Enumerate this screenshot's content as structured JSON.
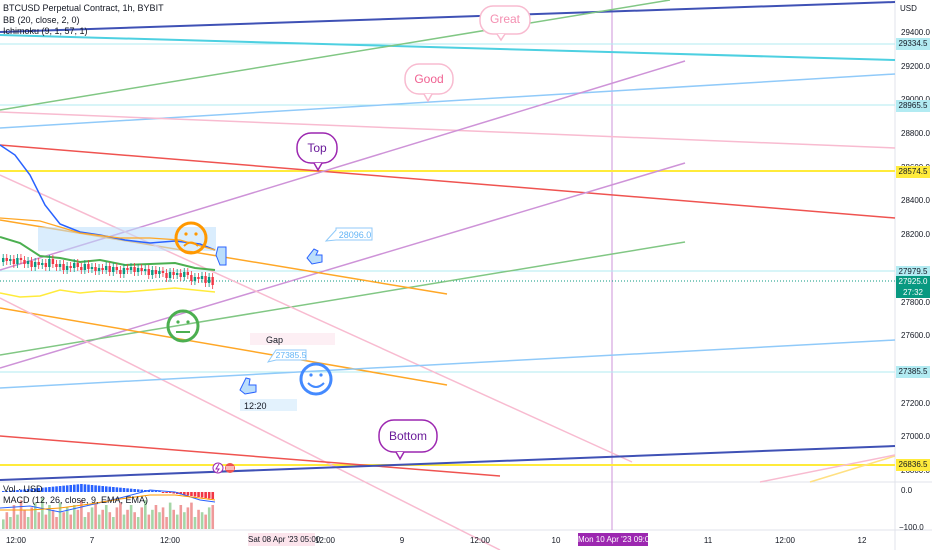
{
  "chart": {
    "symbol_line": "BTCUSD Perpetual Contract, 1h, BYBIT",
    "indicators": [
      "BB (20, close, 2, 0)",
      "Ichimoku (9, 1, 57, 1)"
    ],
    "currency": "USD",
    "price_ticks": [
      "29400.0",
      "29200.0",
      "28800.0",
      "28400.0",
      "28200.0",
      "27800.0",
      "27600.0",
      "27200.0",
      "27000.0"
    ],
    "price_ticks_partial": [
      "29000.0",
      "28600.0",
      "27400.0",
      "26800.0"
    ],
    "price_tags": [
      {
        "label": "29334.5",
        "color": "#b2ebf2",
        "text_color": "#131722"
      },
      {
        "label": "28965.5",
        "color": "#b2ebf2",
        "text_color": "#131722"
      },
      {
        "label": "28574.5",
        "color": "#ffeb3b",
        "text_color": "#131722"
      },
      {
        "label": "27979.5",
        "color": "#b2ebf2",
        "text_color": "#131722"
      },
      {
        "label": "27385.5",
        "color": "#b2ebf2",
        "text_color": "#131722"
      },
      {
        "label": "26836.5",
        "color": "#ffeb3b",
        "text_color": "#131722"
      }
    ],
    "current_price": {
      "price": "27925.0",
      "countdown": "27:32",
      "color": "#089981"
    },
    "macd_ticks": [
      "0.0",
      "−100.0"
    ],
    "vol_label": "Vol · USD",
    "macd_label": "MACD (12, 26, close, 9, EMA, EMA)",
    "time_ticks": [
      "12:00",
      "7",
      "12:00",
      "12:00",
      "9",
      "12:00",
      "10",
      "11",
      "12:00",
      "12"
    ],
    "time_highlight_1": "Sat 08 Apr '23",
    "time_highlight_1b": "05:00",
    "time_highlight_2": "Mon 10 Apr '23",
    "time_highlight_2b": "09:00",
    "callouts": {
      "great": "Great",
      "good": "Good",
      "top": "Top",
      "bottom": "Bottom"
    },
    "price_labels": {
      "label_28096": "28096.0",
      "label_27385": "27385.5"
    },
    "gap_label": "Gap",
    "time_label": "12:20"
  },
  "colors": {
    "up": "#089981",
    "down": "#f23645"
  }
}
